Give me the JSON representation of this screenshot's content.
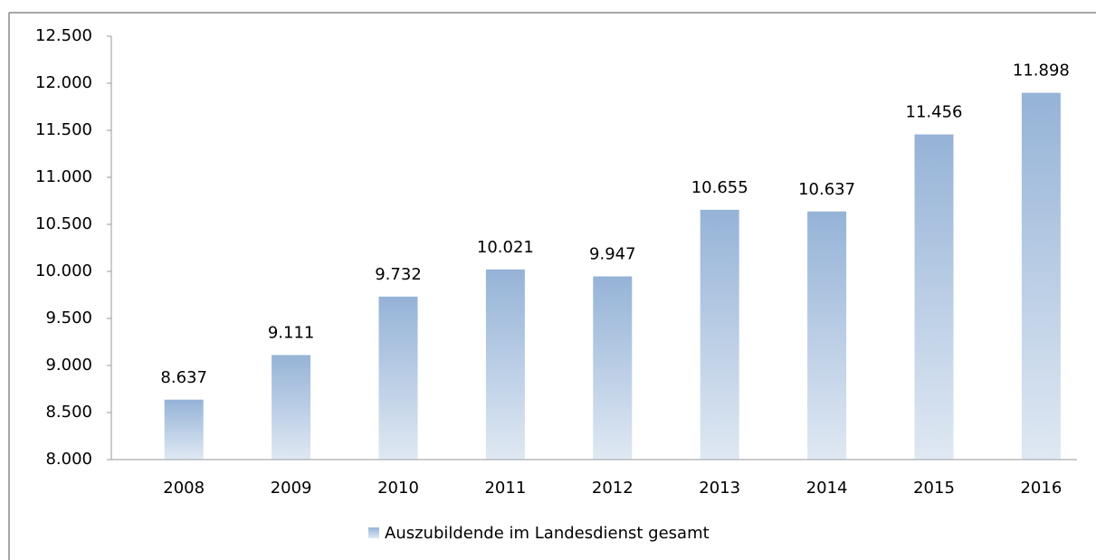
{
  "chart_data": {
    "type": "bar",
    "categories": [
      "2008",
      "2009",
      "2010",
      "2011",
      "2012",
      "2013",
      "2014",
      "2015",
      "2016"
    ],
    "series": [
      {
        "name": "Auszubildende im Landesdienst gesamt",
        "color": "#95b3d7",
        "values": [
          8637,
          9111,
          9732,
          10021,
          9947,
          10655,
          10637,
          11456,
          11898
        ],
        "value_labels": [
          "8.637",
          "9.111",
          "9.732",
          "10.021",
          "9.947",
          "10.655",
          "10.637",
          "11.456",
          "11.898"
        ]
      }
    ],
    "ylim": [
      8000,
      12500
    ],
    "yticks": [
      {
        "value": 8000,
        "label": "8.000"
      },
      {
        "value": 8500,
        "label": "8.500"
      },
      {
        "value": 9000,
        "label": "9.000"
      },
      {
        "value": 9500,
        "label": "9.500"
      },
      {
        "value": 10000,
        "label": "10.000"
      },
      {
        "value": 10500,
        "label": "10.500"
      },
      {
        "value": 11000,
        "label": "11.000"
      },
      {
        "value": 11500,
        "label": "11.500"
      },
      {
        "value": 12000,
        "label": "12.000"
      },
      {
        "value": 12500,
        "label": "12.500"
      }
    ],
    "grid": false,
    "legend": "bottom"
  }
}
